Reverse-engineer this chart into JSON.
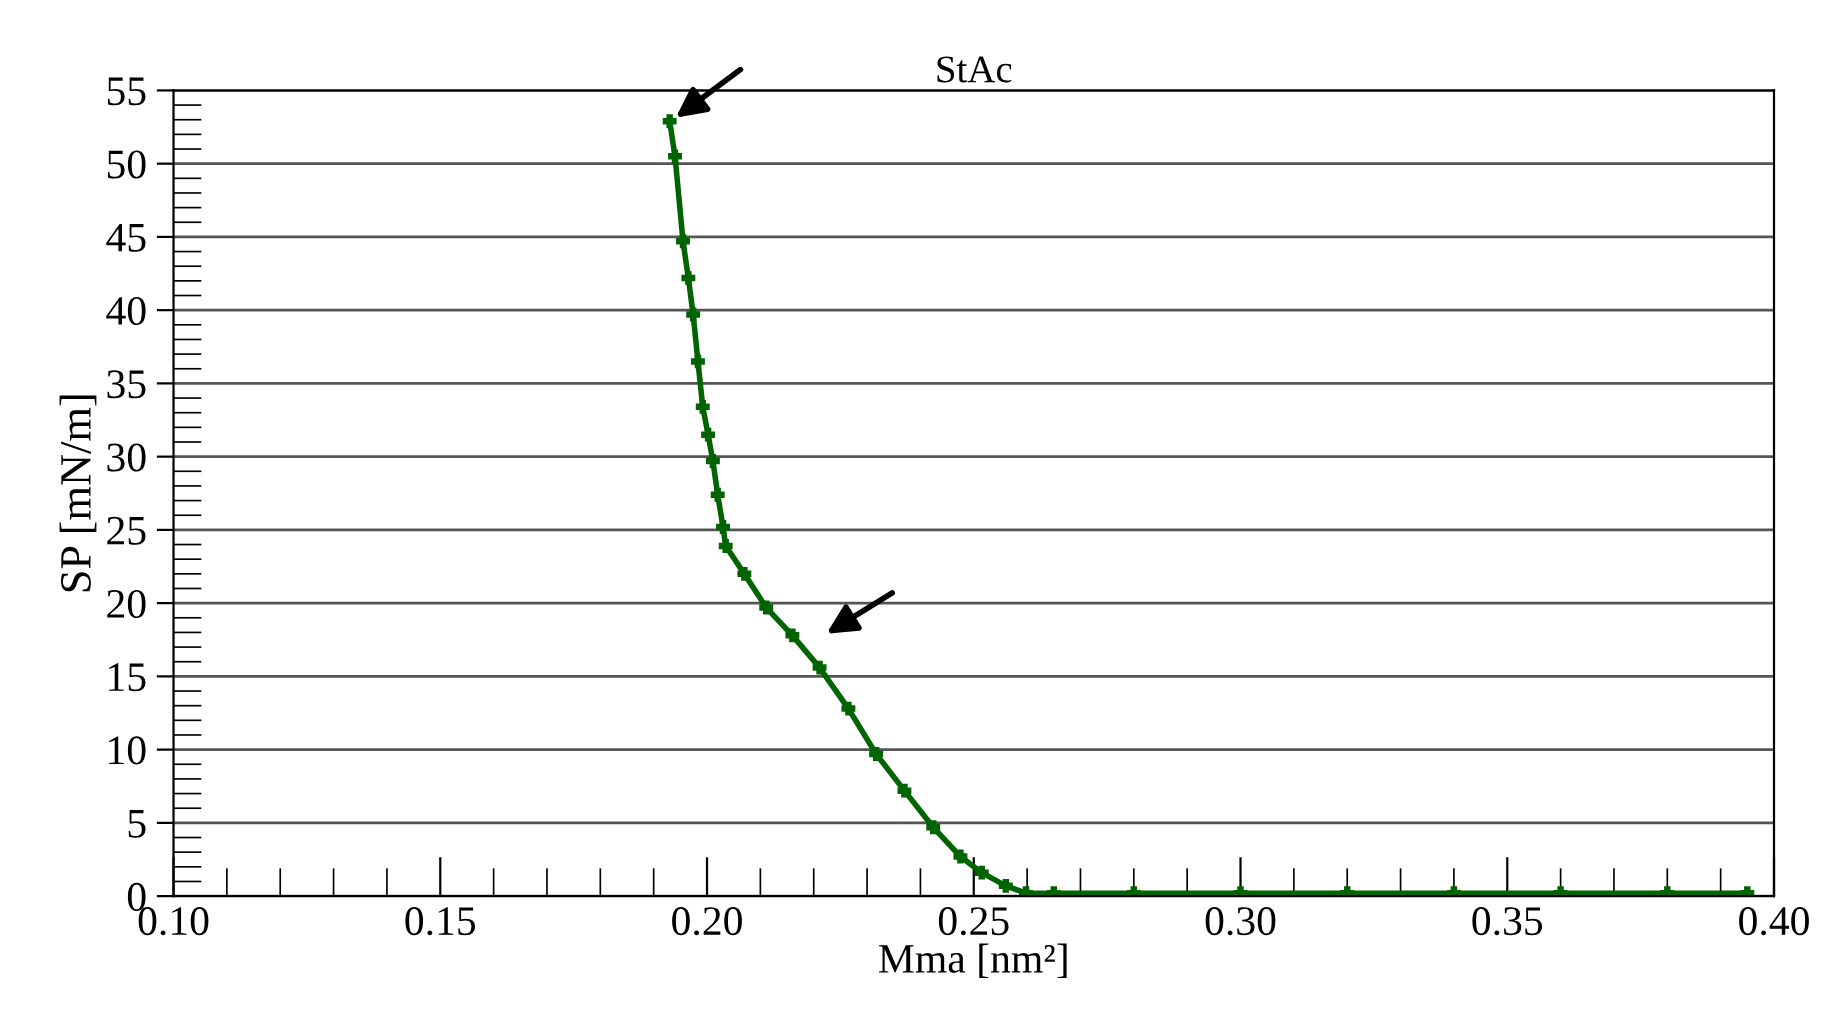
{
  "chart_data": {
    "type": "line",
    "title": "StAc",
    "xlabel": "Mma [nm²]",
    "ylabel": "SP [mN/m]",
    "x": [
      0.193,
      0.194,
      0.1955,
      0.1965,
      0.1974,
      0.1983,
      0.1992,
      0.2002,
      0.2011,
      0.202,
      0.203,
      0.2035,
      0.207,
      0.2111,
      0.216,
      0.2211,
      0.2265,
      0.2317,
      0.237,
      0.2424,
      0.2475,
      0.2515,
      0.256,
      0.2598,
      0.265,
      0.28,
      0.3,
      0.32,
      0.34,
      0.36,
      0.38,
      0.395
    ],
    "series": [
      {
        "color": "#006400",
        "values": [
          52.9,
          50.5,
          44.7,
          42.2,
          39.7,
          36.5,
          33.4,
          31.5,
          29.7,
          27.4,
          25.2,
          23.9,
          22.0,
          19.7,
          17.8,
          15.6,
          12.8,
          9.7,
          7.2,
          4.7,
          2.7,
          1.6,
          0.7,
          0.2,
          0.2,
          0.2,
          0.2,
          0.2,
          0.2,
          0.2,
          0.2,
          0.2
        ]
      }
    ],
    "xlim": [
      0.1,
      0.4
    ],
    "xticks": [
      {
        "value": 0.1,
        "label": "0.10"
      },
      {
        "value": 0.15,
        "label": "0.15"
      },
      {
        "value": 0.2,
        "label": "0.20"
      },
      {
        "value": 0.25,
        "label": "0.25"
      },
      {
        "value": 0.3,
        "label": "0.30"
      },
      {
        "value": 0.35,
        "label": "0.35"
      },
      {
        "value": 0.4,
        "label": "0.40"
      }
    ],
    "ylim": [
      0,
      55
    ],
    "yticks": [
      0,
      5,
      10,
      15,
      20,
      25,
      30,
      35,
      40,
      45,
      50,
      55
    ],
    "grid": "y",
    "marker": "cross",
    "line_style": "solid",
    "legend": false
  }
}
